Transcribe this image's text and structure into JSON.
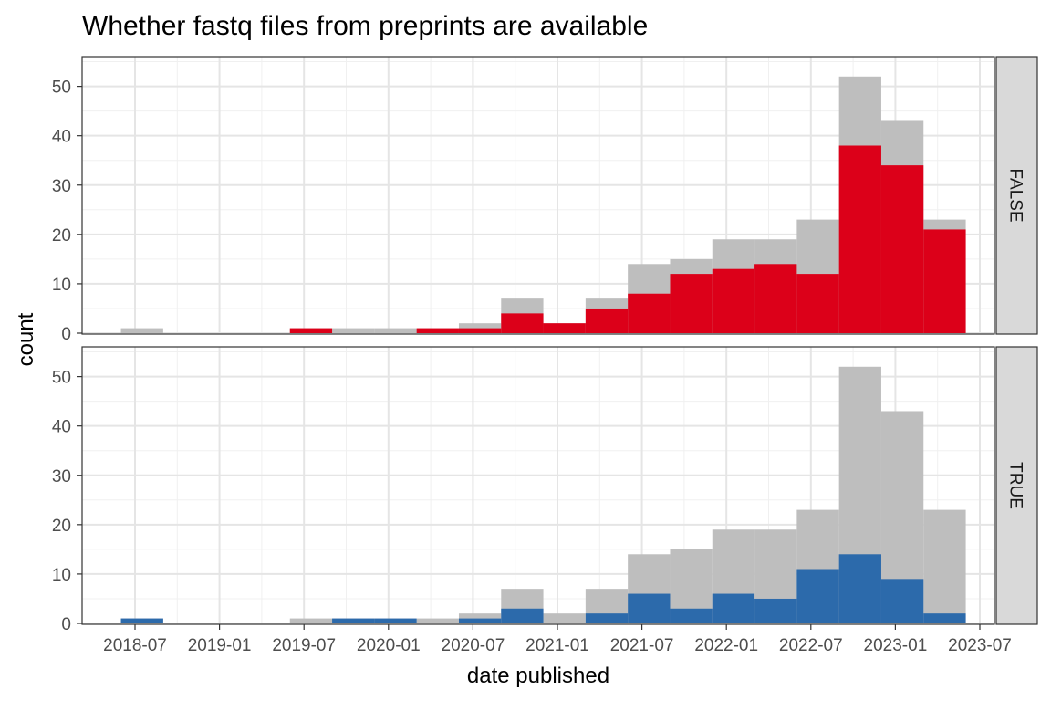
{
  "title": "Whether fastq files from preprints are available",
  "chart_data": {
    "type": "bar",
    "title": "Whether fastq files from preprints are available",
    "xlabel": "date published",
    "ylabel": "count",
    "x_ticks": [
      "2018-07",
      "2019-01",
      "2019-07",
      "2020-01",
      "2020-07",
      "2021-01",
      "2021-07",
      "2022-01",
      "2022-07",
      "2023-01",
      "2023-07"
    ],
    "ylim": [
      0,
      55
    ],
    "y_ticks": [
      0,
      10,
      20,
      30,
      40,
      50
    ],
    "bins": [
      "2018-06",
      "2018-09",
      "2018-12",
      "2019-03",
      "2019-06",
      "2019-09",
      "2019-12",
      "2020-03",
      "2020-06",
      "2020-09",
      "2020-12",
      "2021-03",
      "2021-06",
      "2021-09",
      "2021-12",
      "2022-03",
      "2022-06",
      "2022-09",
      "2022-12",
      "2023-03"
    ],
    "total_background": {
      "color": "#bebebe",
      "values": [
        1,
        0,
        0,
        0,
        1,
        1,
        1,
        1,
        2,
        7,
        2,
        7,
        14,
        15,
        19,
        19,
        23,
        52,
        43,
        23
      ]
    },
    "panels": [
      {
        "facet": "FALSE",
        "color": "#dc0019",
        "values": [
          0,
          0,
          0,
          0,
          1,
          0,
          0,
          1,
          1,
          4,
          2,
          5,
          8,
          12,
          13,
          14,
          12,
          38,
          34,
          21
        ]
      },
      {
        "facet": "TRUE",
        "color": "#2c6aab",
        "values": [
          1,
          0,
          0,
          0,
          0,
          1,
          1,
          0,
          1,
          3,
          0,
          2,
          6,
          3,
          6,
          5,
          11,
          14,
          9,
          2
        ]
      }
    ],
    "grid": true,
    "legend": "none"
  }
}
